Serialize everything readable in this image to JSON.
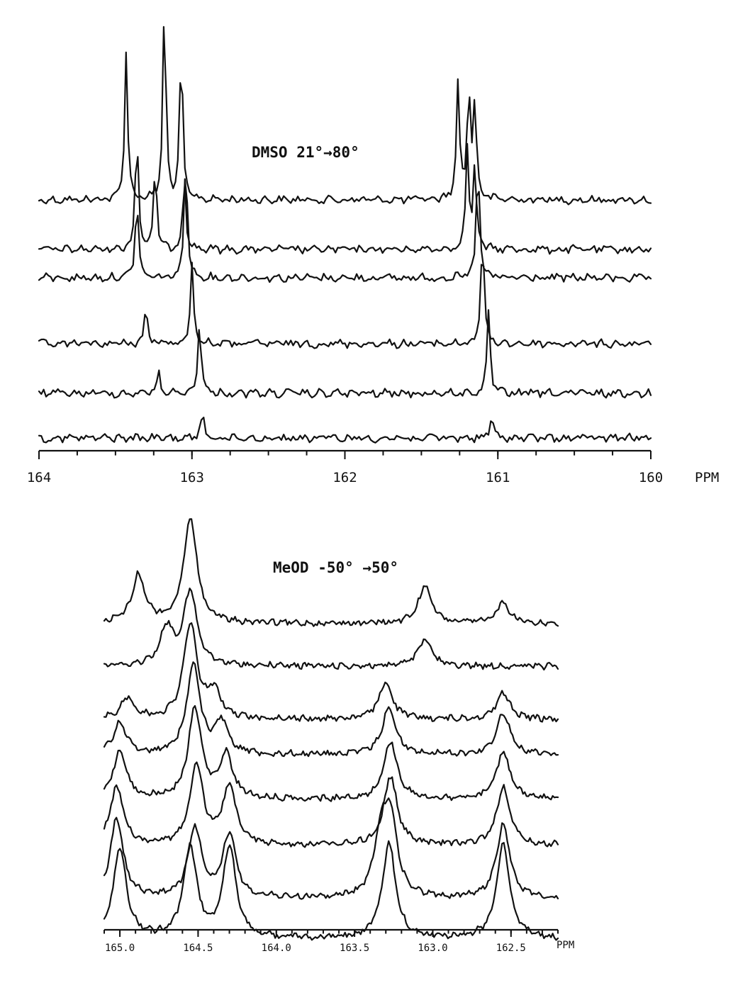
{
  "chart_data": [
    {
      "type": "line",
      "title": "DMSO 21°→80°",
      "xlabel": "PPM",
      "x_reversed": true,
      "xlim": [
        164,
        160
      ],
      "tick_labels": [
        "164",
        "163",
        "162",
        "161",
        "160"
      ],
      "grid": false,
      "legend": "none",
      "series": [
        {
          "peaks": [
            [
              163.43,
              1.0
            ],
            [
              163.18,
              1.3
            ],
            [
              163.07,
              1.0
            ],
            [
              161.26,
              0.8
            ],
            [
              161.19,
              0.75
            ],
            [
              161.15,
              0.65
            ]
          ]
        },
        {
          "peaks": [
            [
              163.36,
              0.8
            ],
            [
              163.24,
              0.55
            ],
            [
              163.05,
              0.5
            ],
            [
              161.2,
              0.7
            ],
            [
              161.15,
              0.55
            ]
          ]
        },
        {
          "peaks": [
            [
              163.36,
              0.55
            ],
            [
              163.04,
              0.85
            ],
            [
              161.13,
              0.8
            ]
          ]
        },
        {
          "peaks": [
            [
              163.3,
              0.25
            ],
            [
              163.0,
              0.55
            ],
            [
              161.1,
              0.75
            ]
          ]
        },
        {
          "peaks": [
            [
              163.22,
              0.15
            ],
            [
              162.95,
              0.5
            ],
            [
              161.06,
              0.55
            ]
          ]
        },
        {
          "peaks": [
            [
              162.93,
              0.18
            ],
            [
              161.04,
              0.15
            ]
          ]
        }
      ]
    },
    {
      "type": "line",
      "title": "MeOD -50° →50°",
      "xlabel": "PPM",
      "x_reversed": true,
      "xlim": [
        165.1,
        162.2
      ],
      "tick_labels": [
        "165.0",
        "164.5",
        "164.0",
        "163.5",
        "163.0",
        "162.5"
      ],
      "grid": false,
      "legend": "none",
      "series": [
        {
          "peaks": [
            [
              164.88,
              0.45
            ],
            [
              164.55,
              1.0
            ],
            [
              163.05,
              0.35
            ],
            [
              162.55,
              0.2
            ]
          ]
        },
        {
          "peaks": [
            [
              164.7,
              0.35
            ],
            [
              164.55,
              0.7
            ],
            [
              163.05,
              0.25
            ]
          ]
        },
        {
          "peaks": [
            [
              164.95,
              0.2
            ],
            [
              164.55,
              0.9
            ],
            [
              164.4,
              0.25
            ],
            [
              163.3,
              0.35
            ],
            [
              162.55,
              0.25
            ]
          ]
        },
        {
          "peaks": [
            [
              165.0,
              0.3
            ],
            [
              164.53,
              0.85
            ],
            [
              164.35,
              0.3
            ],
            [
              163.28,
              0.45
            ],
            [
              162.55,
              0.4
            ]
          ]
        },
        {
          "peaks": [
            [
              165.0,
              0.45
            ],
            [
              164.52,
              0.85
            ],
            [
              164.32,
              0.4
            ],
            [
              163.27,
              0.55
            ],
            [
              162.55,
              0.45
            ]
          ]
        },
        {
          "peaks": [
            [
              165.02,
              0.55
            ],
            [
              164.51,
              0.75
            ],
            [
              164.3,
              0.55
            ],
            [
              163.27,
              0.65
            ],
            [
              162.55,
              0.55
            ]
          ]
        },
        {
          "peaks": [
            [
              165.02,
              0.75
            ],
            [
              164.52,
              0.65
            ],
            [
              164.3,
              0.6
            ],
            [
              163.33,
              0.55
            ],
            [
              163.27,
              0.7
            ],
            [
              162.55,
              0.7
            ]
          ]
        },
        {
          "peaks": [
            [
              165.0,
              0.85
            ],
            [
              164.55,
              0.85
            ],
            [
              164.3,
              0.85
            ],
            [
              163.28,
              0.9
            ],
            [
              162.55,
              0.9
            ]
          ]
        }
      ]
    }
  ]
}
